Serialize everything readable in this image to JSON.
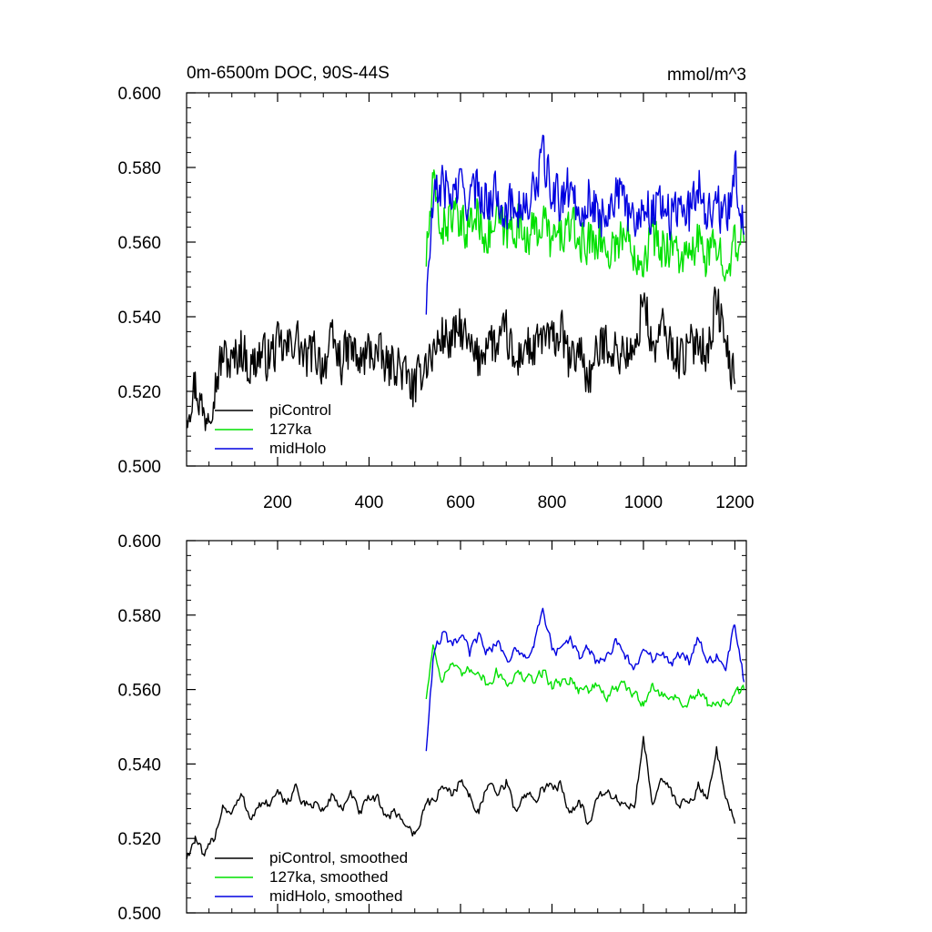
{
  "charts": [
    {
      "id": "raw",
      "title_left": "0m-6500m DOC, 90S-44S",
      "title_right": "mmol/m^3",
      "legend": [
        {
          "label": "piControl",
          "color": "#000000"
        },
        {
          "label": "127ka",
          "color": "#00e000"
        },
        {
          "label": "midHolo",
          "color": "#0000e0"
        }
      ],
      "y_tick_labels": [
        "0.600",
        "0.580",
        "0.560",
        "0.540",
        "0.520",
        "0.500"
      ],
      "x_tick_labels": [
        "200",
        "400",
        "600",
        "800",
        "1000",
        "1200"
      ]
    },
    {
      "id": "smoothed",
      "legend": [
        {
          "label": "piControl, smoothed",
          "color": "#000000"
        },
        {
          "label": "127ka, smoothed",
          "color": "#00e000"
        },
        {
          "label": "midHolo, smoothed",
          "color": "#0000e0"
        }
      ],
      "y_tick_labels": [
        "0.600",
        "0.580",
        "0.560",
        "0.540",
        "0.520",
        "0.500"
      ]
    }
  ],
  "chart_data": [
    {
      "type": "line",
      "title": "0m-6500m DOC, 90S-44S",
      "units": "mmol/m^3",
      "xlim": [
        1,
        1225
      ],
      "ylim": [
        0.5,
        0.6
      ],
      "x_ticks": [
        200,
        400,
        600,
        800,
        1000,
        1200
      ],
      "y_ticks": [
        0.5,
        0.52,
        0.54,
        0.56,
        0.58,
        0.6
      ],
      "legend_position": "lower-left",
      "grid": false,
      "series": [
        {
          "name": "piControl",
          "color": "#000000",
          "x": [
            1,
            20,
            40,
            60,
            80,
            100,
            120,
            140,
            160,
            180,
            200,
            220,
            240,
            260,
            280,
            300,
            320,
            340,
            360,
            380,
            400,
            420,
            440,
            460,
            480,
            500,
            520,
            540,
            560,
            580,
            600,
            620,
            640,
            660,
            680,
            700,
            720,
            740,
            760,
            780,
            800,
            820,
            840,
            860,
            880,
            900,
            920,
            940,
            960,
            980,
            1000,
            1020,
            1040,
            1060,
            1080,
            1100,
            1120,
            1140,
            1160,
            1180,
            1200
          ],
          "y": [
            0.515,
            0.522,
            0.513,
            0.52,
            0.53,
            0.527,
            0.532,
            0.526,
            0.53,
            0.529,
            0.532,
            0.531,
            0.535,
            0.528,
            0.531,
            0.527,
            0.533,
            0.528,
            0.532,
            0.527,
            0.531,
            0.53,
            0.526,
            0.528,
            0.524,
            0.52,
            0.528,
            0.53,
            0.535,
            0.533,
            0.537,
            0.531,
            0.528,
            0.535,
            0.531,
            0.536,
            0.526,
            0.533,
            0.53,
            0.535,
            0.533,
            0.536,
            0.527,
            0.532,
            0.523,
            0.53,
            0.534,
            0.53,
            0.531,
            0.528,
            0.547,
            0.53,
            0.537,
            0.532,
            0.529,
            0.531,
            0.535,
            0.53,
            0.545,
            0.532,
            0.522
          ]
        },
        {
          "name": "127ka",
          "color": "#00e000",
          "x": [
            525,
            540,
            560,
            580,
            600,
            620,
            640,
            660,
            680,
            700,
            720,
            740,
            760,
            780,
            800,
            820,
            840,
            860,
            880,
            900,
            920,
            940,
            960,
            980,
            1000,
            1020,
            1040,
            1060,
            1080,
            1100,
            1120,
            1140,
            1160,
            1180,
            1200,
            1220
          ],
          "y": [
            0.556,
            0.575,
            0.563,
            0.568,
            0.563,
            0.565,
            0.567,
            0.561,
            0.566,
            0.562,
            0.565,
            0.563,
            0.562,
            0.566,
            0.56,
            0.562,
            0.564,
            0.56,
            0.56,
            0.562,
            0.557,
            0.56,
            0.562,
            0.558,
            0.556,
            0.562,
            0.558,
            0.56,
            0.556,
            0.555,
            0.56,
            0.556,
            0.558,
            0.556,
            0.558,
            0.56
          ]
        },
        {
          "name": "midHolo",
          "color": "#0000e0",
          "x": [
            525,
            540,
            560,
            580,
            600,
            620,
            640,
            660,
            680,
            700,
            720,
            740,
            760,
            780,
            800,
            820,
            840,
            860,
            880,
            900,
            920,
            940,
            960,
            980,
            1000,
            1020,
            1040,
            1060,
            1080,
            1100,
            1120,
            1140,
            1160,
            1180,
            1200,
            1220
          ],
          "y": [
            0.543,
            0.57,
            0.576,
            0.572,
            0.575,
            0.571,
            0.575,
            0.57,
            0.574,
            0.568,
            0.571,
            0.568,
            0.573,
            0.583,
            0.573,
            0.571,
            0.575,
            0.568,
            0.572,
            0.567,
            0.568,
            0.574,
            0.569,
            0.566,
            0.57,
            0.568,
            0.572,
            0.566,
            0.57,
            0.568,
            0.576,
            0.568,
            0.57,
            0.566,
            0.58,
            0.562
          ]
        }
      ]
    },
    {
      "type": "line",
      "xlim": [
        1,
        1225
      ],
      "ylim": [
        0.5,
        0.6
      ],
      "x_ticks": [
        200,
        400,
        600,
        800,
        1000,
        1200
      ],
      "y_ticks": [
        0.5,
        0.52,
        0.54,
        0.56,
        0.58,
        0.6
      ],
      "legend_position": "lower-left",
      "grid": false,
      "series": [
        {
          "name": "piControl, smoothed",
          "color": "#000000",
          "x": [
            1,
            20,
            40,
            60,
            80,
            100,
            120,
            140,
            160,
            180,
            200,
            220,
            240,
            260,
            280,
            300,
            320,
            340,
            360,
            380,
            400,
            420,
            440,
            460,
            480,
            500,
            520,
            540,
            560,
            580,
            600,
            620,
            640,
            660,
            680,
            700,
            720,
            740,
            760,
            780,
            800,
            820,
            840,
            860,
            880,
            900,
            920,
            940,
            960,
            980,
            1000,
            1020,
            1040,
            1060,
            1080,
            1100,
            1120,
            1140,
            1160,
            1180,
            1200
          ],
          "y": [
            0.515,
            0.52,
            0.514,
            0.52,
            0.529,
            0.527,
            0.531,
            0.526,
            0.529,
            0.529,
            0.531,
            0.53,
            0.534,
            0.528,
            0.53,
            0.527,
            0.532,
            0.528,
            0.531,
            0.527,
            0.53,
            0.53,
            0.526,
            0.527,
            0.524,
            0.521,
            0.528,
            0.53,
            0.534,
            0.532,
            0.536,
            0.531,
            0.528,
            0.534,
            0.531,
            0.535,
            0.527,
            0.532,
            0.53,
            0.534,
            0.533,
            0.535,
            0.527,
            0.531,
            0.524,
            0.53,
            0.533,
            0.53,
            0.53,
            0.528,
            0.546,
            0.53,
            0.536,
            0.532,
            0.529,
            0.531,
            0.534,
            0.53,
            0.544,
            0.532,
            0.524
          ]
        },
        {
          "name": "127ka, smoothed",
          "color": "#00e000",
          "x": [
            525,
            540,
            560,
            580,
            600,
            620,
            640,
            660,
            680,
            700,
            720,
            740,
            760,
            780,
            800,
            820,
            840,
            860,
            880,
            900,
            920,
            940,
            960,
            980,
            1000,
            1020,
            1040,
            1060,
            1080,
            1100,
            1120,
            1140,
            1160,
            1180,
            1200,
            1220
          ],
          "y": [
            0.558,
            0.572,
            0.563,
            0.567,
            0.563,
            0.565,
            0.566,
            0.561,
            0.565,
            0.562,
            0.564,
            0.563,
            0.562,
            0.565,
            0.561,
            0.562,
            0.563,
            0.56,
            0.56,
            0.561,
            0.558,
            0.56,
            0.561,
            0.558,
            0.557,
            0.561,
            0.558,
            0.559,
            0.557,
            0.556,
            0.559,
            0.556,
            0.557,
            0.556,
            0.558,
            0.56
          ]
        },
        {
          "name": "midHolo, smoothed",
          "color": "#0000e0",
          "x": [
            525,
            540,
            560,
            580,
            600,
            620,
            640,
            660,
            680,
            700,
            720,
            740,
            760,
            780,
            800,
            820,
            840,
            860,
            880,
            900,
            920,
            940,
            960,
            980,
            1000,
            1020,
            1040,
            1060,
            1080,
            1100,
            1120,
            1140,
            1160,
            1180,
            1200,
            1220
          ],
          "y": [
            0.544,
            0.568,
            0.575,
            0.571,
            0.574,
            0.57,
            0.574,
            0.57,
            0.573,
            0.568,
            0.57,
            0.568,
            0.572,
            0.58,
            0.572,
            0.57,
            0.574,
            0.568,
            0.571,
            0.567,
            0.568,
            0.573,
            0.569,
            0.566,
            0.569,
            0.568,
            0.571,
            0.566,
            0.569,
            0.568,
            0.575,
            0.568,
            0.569,
            0.566,
            0.578,
            0.562
          ]
        }
      ]
    }
  ]
}
